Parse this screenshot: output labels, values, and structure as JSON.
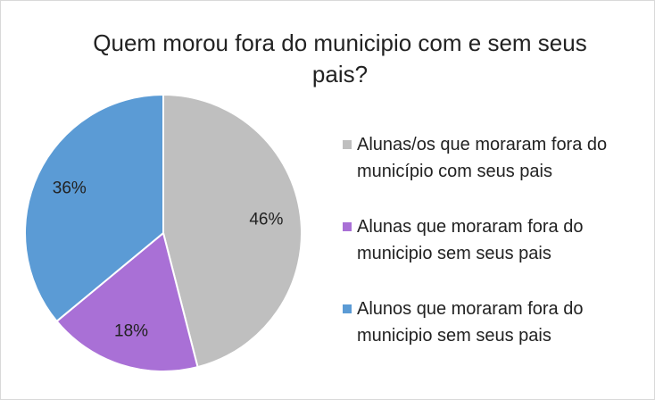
{
  "chart_data": {
    "type": "pie",
    "title": "Quem morou fora do municipio com e sem seus pais?",
    "categories": [
      "Alunas/os que moraram fora do município com seus pais",
      "Alunas que moraram fora do municipio sem seus pais",
      "Alunos que moraram fora do municipio sem seus pais"
    ],
    "values": [
      46,
      18,
      36
    ],
    "value_labels": [
      "46%",
      "18%",
      "36%"
    ],
    "colors": [
      "#bfbfbf",
      "#a970d6",
      "#5b9bd5"
    ],
    "legend": "right"
  }
}
